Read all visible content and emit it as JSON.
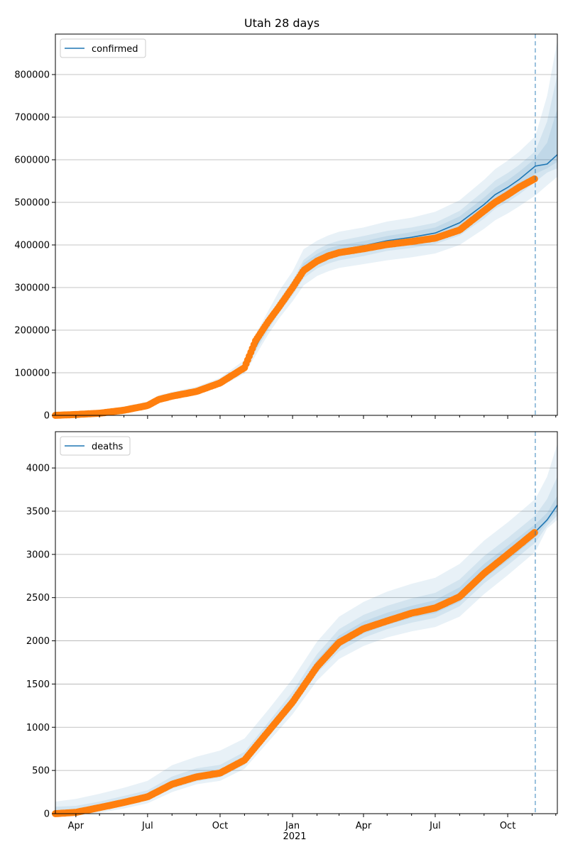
{
  "figure": {
    "title": "Utah 28 days",
    "year_label": "2021",
    "x_tick_labels": [
      "Apr",
      "Jul",
      "Oct",
      "Jan",
      "Apr",
      "Jul",
      "Oct"
    ]
  },
  "colors": {
    "model_line": "#1f77b4",
    "band": "#1f77b4",
    "observed": "#ff7f0e",
    "grid": "#b0b0b0",
    "cutoff_line": "#1f77b4"
  },
  "chart_data": [
    {
      "type": "line",
      "legend_location": "upper-left",
      "grid": "horizontal",
      "x_range": [
        "2020-03-06",
        "2021-12-03"
      ],
      "ylim": [
        0,
        895000
      ],
      "y_ticks": [
        0,
        100000,
        200000,
        300000,
        400000,
        500000,
        600000,
        700000,
        800000
      ],
      "forecast_start": "2021-11-05",
      "series": [
        {
          "name": "confirmed",
          "role": "model",
          "points": [
            [
              "2020-03-06",
              0
            ],
            [
              "2020-04-01",
              2000
            ],
            [
              "2020-05-01",
              7000
            ],
            [
              "2020-06-01",
              15000
            ],
            [
              "2020-07-01",
              25000
            ],
            [
              "2020-07-15",
              38000
            ],
            [
              "2020-08-01",
              45000
            ],
            [
              "2020-09-01",
              55000
            ],
            [
              "2020-10-01",
              75000
            ],
            [
              "2020-11-01",
              112000
            ],
            [
              "2020-11-15",
              160000
            ],
            [
              "2020-12-01",
              215000
            ],
            [
              "2020-12-15",
              257000
            ],
            [
              "2021-01-01",
              300000
            ],
            [
              "2021-01-15",
              345000
            ],
            [
              "2021-02-01",
              368000
            ],
            [
              "2021-02-15",
              380000
            ],
            [
              "2021-03-01",
              388000
            ],
            [
              "2021-04-01",
              398000
            ],
            [
              "2021-05-01",
              410000
            ],
            [
              "2021-06-01",
              418000
            ],
            [
              "2021-07-01",
              428000
            ],
            [
              "2021-08-01",
              452000
            ],
            [
              "2021-09-01",
              495000
            ],
            [
              "2021-09-15",
              518000
            ],
            [
              "2021-10-01",
              535000
            ],
            [
              "2021-10-15",
              553000
            ],
            [
              "2021-11-05",
              585000
            ],
            [
              "2021-11-20",
              590000
            ],
            [
              "2021-12-03",
              612000
            ]
          ]
        },
        {
          "role": "observed",
          "points": [
            [
              "2020-03-06",
              0
            ],
            [
              "2020-04-01",
              2000
            ],
            [
              "2020-05-01",
              5000
            ],
            [
              "2020-06-01",
              12000
            ],
            [
              "2020-07-01",
              23000
            ],
            [
              "2020-07-15",
              37000
            ],
            [
              "2020-08-01",
              45000
            ],
            [
              "2020-09-01",
              56000
            ],
            [
              "2020-10-01",
              76000
            ],
            [
              "2020-11-01",
              112000
            ],
            [
              "2020-11-15",
              175000
            ],
            [
              "2020-12-01",
              220000
            ],
            [
              "2020-12-15",
              255000
            ],
            [
              "2021-01-01",
              300000
            ],
            [
              "2021-01-15",
              340000
            ],
            [
              "2021-02-01",
              362000
            ],
            [
              "2021-02-15",
              374000
            ],
            [
              "2021-03-01",
              382000
            ],
            [
              "2021-04-01",
              391000
            ],
            [
              "2021-05-01",
              401000
            ],
            [
              "2021-06-01",
              408000
            ],
            [
              "2021-07-01",
              416000
            ],
            [
              "2021-08-01",
              435000
            ],
            [
              "2021-09-01",
              480000
            ],
            [
              "2021-09-15",
              500000
            ],
            [
              "2021-10-01",
              518000
            ],
            [
              "2021-10-15",
              535000
            ],
            [
              "2021-11-05",
              556000
            ]
          ]
        }
      ],
      "bands": [
        {
          "lower": [
            0,
            0,
            3500,
            10000,
            20000,
            31000,
            39000,
            49000,
            67000,
            98000,
            140000,
            190000,
            228000,
            268000,
            305000,
            327000,
            338000,
            346000,
            355000,
            364000,
            371000,
            380000,
            400000,
            438000,
            458000,
            474000,
            490000,
            516000,
            540000,
            560000
          ],
          "upper": [
            0,
            4500,
            11000,
            21000,
            32000,
            47000,
            55000,
            67000,
            88000,
            130000,
            190000,
            245000,
            292000,
            338000,
            390000,
            410000,
            422000,
            431000,
            441000,
            455000,
            464000,
            478000,
            505000,
            553000,
            578000,
            598000,
            618000,
            655000,
            750000,
            880000
          ]
        },
        {
          "lower": [
            0,
            1000,
            5000,
            12000,
            22000,
            34000,
            41000,
            51000,
            70000,
            104000,
            150000,
            200000,
            241000,
            282000,
            322000,
            345000,
            356000,
            364000,
            374000,
            386000,
            393000,
            402000,
            422000,
            462000,
            485000,
            501000,
            518000,
            548000,
            570000,
            580000
          ],
          "upper": [
            0,
            3500,
            9000,
            18000,
            28000,
            42000,
            49000,
            60000,
            80000,
            121000,
            172000,
            228000,
            271000,
            316000,
            365000,
            389000,
            402000,
            410000,
            421000,
            433000,
            441000,
            452000,
            480000,
            527000,
            551000,
            569000,
            587000,
            620000,
            690000,
            800000
          ]
        },
        {
          "lower": [
            0,
            1500,
            6000,
            13500,
            23500,
            36000,
            43000,
            53000,
            72500,
            108000,
            155000,
            207000,
            249000,
            291000,
            333000,
            357000,
            368000,
            377000,
            387000,
            399000,
            406000,
            415000,
            437000,
            479000,
            502000,
            518000,
            535000,
            567000,
            580000,
            595000
          ],
          "upper": [
            0,
            2500,
            8000,
            16500,
            26500,
            40000,
            47000,
            57000,
            77500,
            116000,
            165000,
            223000,
            265000,
            309000,
            357000,
            379000,
            392000,
            399000,
            409000,
            421000,
            430000,
            441000,
            467000,
            511000,
            534000,
            552000,
            571000,
            603000,
            640000,
            720000
          ]
        }
      ]
    },
    {
      "type": "line",
      "legend_location": "upper-left",
      "grid": "horizontal",
      "x_range": [
        "2020-03-06",
        "2021-12-03"
      ],
      "ylim": [
        0,
        4420
      ],
      "y_ticks": [
        0,
        500,
        1000,
        1500,
        2000,
        2500,
        3000,
        3500,
        4000
      ],
      "forecast_start": "2021-11-05",
      "series": [
        {
          "name": "deaths",
          "role": "model",
          "points": [
            [
              "2020-03-06",
              0
            ],
            [
              "2020-04-01",
              15
            ],
            [
              "2020-05-01",
              70
            ],
            [
              "2020-06-01",
              130
            ],
            [
              "2020-07-01",
              200
            ],
            [
              "2020-08-01",
              340
            ],
            [
              "2020-09-01",
              430
            ],
            [
              "2020-10-01",
              470
            ],
            [
              "2020-11-01",
              620
            ],
            [
              "2020-12-01",
              950
            ],
            [
              "2021-01-01",
              1300
            ],
            [
              "2021-02-01",
              1720
            ],
            [
              "2021-03-01",
              1990
            ],
            [
              "2021-04-01",
              2150
            ],
            [
              "2021-05-01",
              2250
            ],
            [
              "2021-06-01",
              2330
            ],
            [
              "2021-07-01",
              2390
            ],
            [
              "2021-08-01",
              2530
            ],
            [
              "2021-09-01",
              2800
            ],
            [
              "2021-10-01",
              3010
            ],
            [
              "2021-11-05",
              3260
            ],
            [
              "2021-11-20",
              3400
            ],
            [
              "2021-12-03",
              3570
            ]
          ]
        },
        {
          "role": "observed",
          "points": [
            [
              "2020-03-06",
              0
            ],
            [
              "2020-04-01",
              15
            ],
            [
              "2020-05-01",
              70
            ],
            [
              "2020-06-01",
              130
            ],
            [
              "2020-07-01",
              195
            ],
            [
              "2020-08-01",
              340
            ],
            [
              "2020-09-01",
              425
            ],
            [
              "2020-10-01",
              470
            ],
            [
              "2020-11-01",
              620
            ],
            [
              "2020-12-01",
              950
            ],
            [
              "2021-01-01",
              1290
            ],
            [
              "2021-02-01",
              1700
            ],
            [
              "2021-03-01",
              1980
            ],
            [
              "2021-04-01",
              2140
            ],
            [
              "2021-05-01",
              2230
            ],
            [
              "2021-06-01",
              2320
            ],
            [
              "2021-07-01",
              2380
            ],
            [
              "2021-08-01",
              2510
            ],
            [
              "2021-09-01",
              2780
            ],
            [
              "2021-10-01",
              3000
            ],
            [
              "2021-11-05",
              3260
            ]
          ]
        }
      ],
      "bands": [
        {
          "lower": [
            0,
            0,
            10,
            60,
            120,
            250,
            340,
            380,
            520,
            830,
            1150,
            1540,
            1790,
            1940,
            2040,
            2110,
            2160,
            2280,
            2540,
            2760,
            3030,
            3300,
            3400
          ],
          "upper": [
            140,
            170,
            230,
            300,
            380,
            560,
            660,
            730,
            870,
            1200,
            1560,
            1990,
            2280,
            2450,
            2570,
            2660,
            2730,
            2890,
            3160,
            3370,
            3640,
            3900,
            4280
          ]
        },
        {
          "lower": [
            0,
            5,
            35,
            90,
            155,
            290,
            375,
            420,
            565,
            885,
            1220,
            1625,
            1880,
            2035,
            2135,
            2210,
            2265,
            2400,
            2665,
            2875,
            3135,
            3330,
            3450
          ],
          "upper": [
            80,
            90,
            140,
            205,
            270,
            430,
            525,
            565,
            715,
            1055,
            1410,
            1845,
            2135,
            2300,
            2405,
            2490,
            2555,
            2710,
            2980,
            3190,
            3450,
            3640,
            3900
          ]
        },
        {
          "lower": [
            0,
            10,
            50,
            110,
            175,
            315,
            400,
            445,
            595,
            915,
            1260,
            1670,
            1930,
            2085,
            2185,
            2265,
            2320,
            2450,
            2720,
            2930,
            3195,
            3370,
            3500
          ],
          "upper": [
            40,
            50,
            100,
            165,
            235,
            385,
            470,
            505,
            660,
            1005,
            1350,
            1780,
            2060,
            2225,
            2325,
            2405,
            2470,
            2620,
            2890,
            3100,
            3350,
            3480,
            3680
          ]
        }
      ]
    }
  ]
}
